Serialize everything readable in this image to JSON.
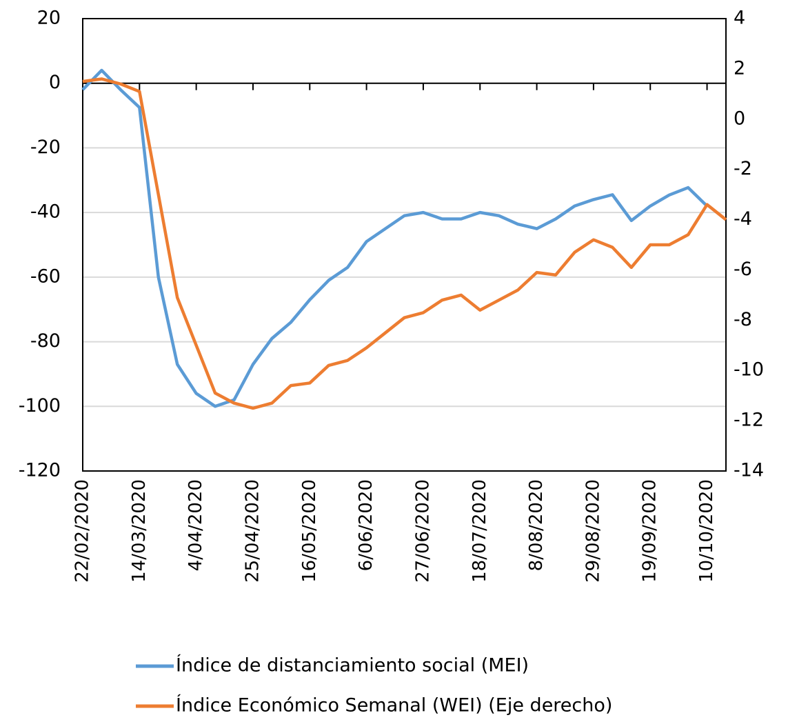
{
  "chart_data": {
    "type": "line",
    "categories": [
      "22/02/2020",
      null,
      null,
      "14/03/2020",
      null,
      null,
      "4/04/2020",
      null,
      null,
      "25/04/2020",
      null,
      null,
      "16/05/2020",
      null,
      null,
      "6/06/2020",
      null,
      null,
      "27/06/2020",
      null,
      null,
      "18/07/2020",
      null,
      null,
      "8/08/2020",
      null,
      null,
      "29/08/2020",
      null,
      null,
      "19/09/2020",
      null,
      null,
      "10/10/2020",
      null
    ],
    "series": [
      {
        "name": "Índice de distanciamiento social (MEI)",
        "color": "#5b9bd5",
        "axis": "y",
        "values": [
          -2,
          4,
          -2,
          -7.5,
          -60,
          -87,
          -96,
          -100,
          -98,
          -87,
          -79,
          -74,
          -67,
          -61,
          -57,
          -49,
          -45,
          -41,
          -40,
          -42,
          -42,
          -40,
          -41,
          -43.6,
          -45,
          -42,
          -38,
          -36,
          -34.5,
          -42.5,
          -38,
          -34.6,
          -32.3,
          -38,
          null
        ]
      },
      {
        "name": "Índice Económico Semanal (WEI) (Eje derecho)",
        "color": "#ed7d31",
        "axis": "y2",
        "values": [
          1.5,
          1.6,
          1.4,
          1.1,
          -3,
          -7.1,
          -9,
          -10.9,
          -11.3,
          -11.5,
          -11.3,
          -10.6,
          -10.5,
          -9.8,
          -9.6,
          -9.1,
          -8.5,
          -7.9,
          -7.7,
          -7.2,
          -7,
          -7.6,
          -7.2,
          -6.8,
          -6.1,
          -6.2,
          -5.3,
          -4.8,
          -5.1,
          -5.9,
          -5,
          -5,
          -4.6,
          -3.4,
          -4
        ]
      }
    ],
    "ylim": [
      -120,
      20
    ],
    "yticks": [
      -120,
      -100,
      -80,
      -60,
      -40,
      -20,
      0,
      20
    ],
    "y2lim": [
      -14,
      4
    ],
    "y2ticks": [
      -14,
      -12,
      -10,
      -8,
      -6,
      -4,
      -2,
      0,
      2,
      4
    ],
    "grid": true,
    "legend": "bottom"
  }
}
